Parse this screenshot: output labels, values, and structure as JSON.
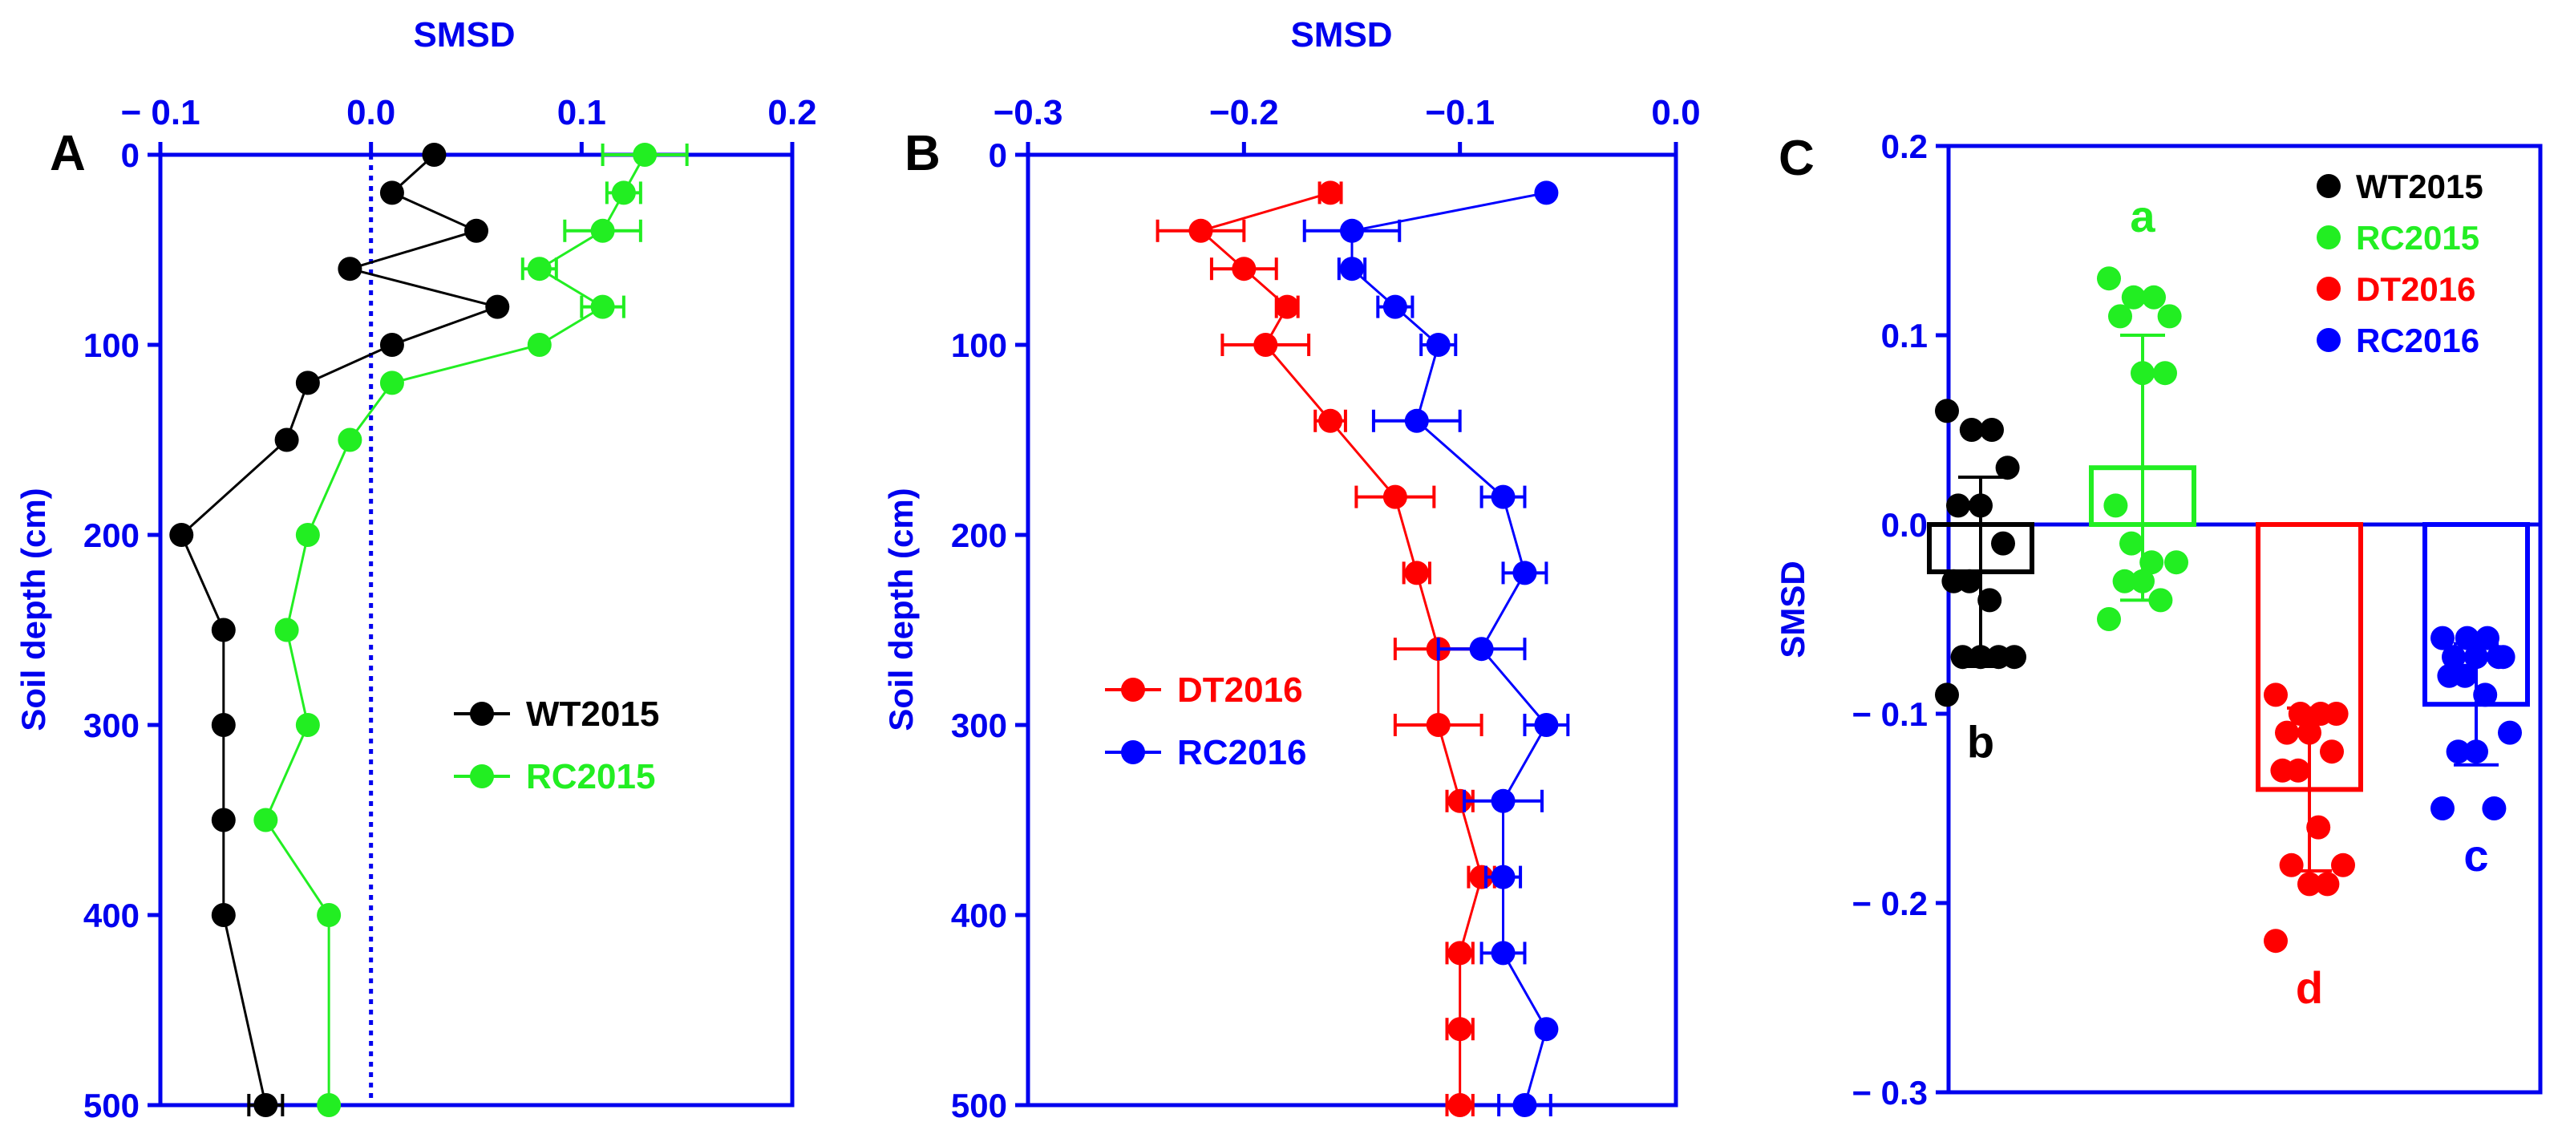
{
  "colors": {
    "axis": "#0000ee",
    "WT2015": "#000000",
    "RC2015": "#22ee22",
    "DT2016": "#ff0000",
    "RC2016": "#0000ff"
  },
  "chart_data": [
    {
      "panel": "A",
      "type": "line",
      "x_axis_title": "SMSD",
      "x_axis_position": "top",
      "xlim": [
        -0.1,
        0.2
      ],
      "xticks": [
        -0.1,
        0.0,
        0.1,
        0.2
      ],
      "xtick_labels": [
        "− 0.1",
        "0.0",
        "0.1",
        "0.2"
      ],
      "y_axis_title": "Soil depth (cm)",
      "ylim": [
        0,
        500
      ],
      "y_inverted": true,
      "yticks": [
        0,
        100,
        200,
        300,
        400,
        500
      ],
      "ytick_labels": [
        "0",
        "100",
        "200",
        "300",
        "400",
        "500"
      ],
      "reference_line_x": 0.0,
      "legend_position": "center-right",
      "series": [
        {
          "name": "WT2015",
          "depth": [
            0,
            20,
            40,
            60,
            80,
            100,
            120,
            150,
            200,
            250,
            300,
            350,
            400,
            500
          ],
          "smsd": [
            0.03,
            0.01,
            0.05,
            -0.01,
            0.06,
            0.01,
            -0.03,
            -0.04,
            -0.09,
            -0.07,
            -0.07,
            -0.07,
            -0.07,
            -0.05
          ],
          "err": [
            0,
            0,
            0,
            0,
            0,
            0,
            0,
            0,
            0,
            0,
            0,
            0,
            0,
            0.008
          ]
        },
        {
          "name": "RC2015",
          "depth": [
            0,
            20,
            40,
            60,
            80,
            100,
            120,
            150,
            200,
            250,
            300,
            350,
            400,
            500
          ],
          "smsd": [
            0.13,
            0.12,
            0.11,
            0.08,
            0.11,
            0.08,
            0.01,
            -0.01,
            -0.03,
            -0.04,
            -0.03,
            -0.05,
            -0.02,
            -0.02
          ],
          "err": [
            0.02,
            0.008,
            0.018,
            0.008,
            0.01,
            0,
            0,
            0,
            0,
            0,
            0,
            0,
            0,
            0
          ]
        }
      ]
    },
    {
      "panel": "B",
      "type": "line",
      "x_axis_title": "SMSD",
      "x_axis_position": "top",
      "xlim": [
        -0.3,
        0.0
      ],
      "xticks": [
        -0.3,
        -0.2,
        -0.1,
        0.0
      ],
      "xtick_labels": [
        "−0.3",
        "−0.2",
        "−0.1",
        "0.0"
      ],
      "y_axis_title": "Soil depth (cm)",
      "ylim": [
        0,
        500
      ],
      "y_inverted": true,
      "yticks": [
        0,
        100,
        200,
        300,
        400,
        500
      ],
      "ytick_labels": [
        "0",
        "100",
        "200",
        "300",
        "400",
        "500"
      ],
      "legend_position": "center-left",
      "series": [
        {
          "name": "DT2016",
          "depth": [
            20,
            40,
            60,
            80,
            100,
            140,
            180,
            220,
            260,
            300,
            340,
            380,
            420,
            460,
            500
          ],
          "smsd": [
            -0.16,
            -0.22,
            -0.2,
            -0.18,
            -0.19,
            -0.16,
            -0.13,
            -0.12,
            -0.11,
            -0.11,
            -0.1,
            -0.09,
            -0.1,
            -0.1,
            -0.1
          ],
          "err": [
            0.005,
            0.02,
            0.015,
            0.005,
            0.02,
            0.007,
            0.018,
            0.006,
            0.02,
            0.02,
            0.006,
            0.006,
            0.006,
            0.006,
            0.006
          ]
        },
        {
          "name": "RC2016",
          "depth": [
            20,
            40,
            60,
            80,
            100,
            140,
            180,
            220,
            260,
            300,
            340,
            380,
            420,
            460,
            500
          ],
          "smsd": [
            -0.06,
            -0.15,
            -0.15,
            -0.13,
            -0.11,
            -0.12,
            -0.08,
            -0.07,
            -0.09,
            -0.06,
            -0.08,
            -0.08,
            -0.08,
            -0.06,
            -0.07
          ],
          "err": [
            0,
            0.022,
            0.006,
            0.008,
            0.008,
            0.02,
            0.01,
            0.01,
            0.02,
            0.01,
            0.018,
            0.008,
            0.01,
            0,
            0.012
          ]
        }
      ]
    },
    {
      "panel": "C",
      "type": "bar",
      "y_axis_title": "SMSD",
      "ylim": [
        -0.3,
        0.2
      ],
      "yticks": [
        -0.3,
        -0.2,
        -0.1,
        0.0,
        0.1,
        0.2
      ],
      "ytick_labels": [
        "− 0.3",
        "− 0.2",
        "− 0.1",
        "0.0",
        "0.1",
        "0.2"
      ],
      "legend_position": "top-right",
      "categories": [
        "WT2015",
        "RC2015",
        "DT2016",
        "RC2016"
      ],
      "means": [
        -0.025,
        0.03,
        -0.14,
        -0.095
      ],
      "sd": [
        0.05,
        0.07,
        0.043,
        0.032
      ],
      "letters": [
        "b",
        "a",
        "d",
        "c"
      ],
      "points": [
        [
          0.06,
          0.05,
          0.05,
          0.03,
          0.01,
          0.01,
          -0.01,
          -0.03,
          -0.03,
          -0.04,
          -0.07,
          -0.07,
          -0.07,
          -0.07,
          -0.09
        ],
        [
          0.13,
          0.12,
          0.12,
          0.11,
          0.11,
          0.08,
          0.08,
          0.01,
          -0.01,
          -0.02,
          -0.02,
          -0.03,
          -0.03,
          -0.04,
          -0.05
        ],
        [
          -0.09,
          -0.1,
          -0.1,
          -0.1,
          -0.11,
          -0.11,
          -0.12,
          -0.13,
          -0.13,
          -0.16,
          -0.18,
          -0.18,
          -0.19,
          -0.19,
          -0.22
        ],
        [
          -0.06,
          -0.06,
          -0.06,
          -0.07,
          -0.07,
          -0.07,
          -0.07,
          -0.08,
          -0.08,
          -0.09,
          -0.11,
          -0.12,
          -0.12,
          -0.15,
          -0.15
        ]
      ]
    }
  ]
}
